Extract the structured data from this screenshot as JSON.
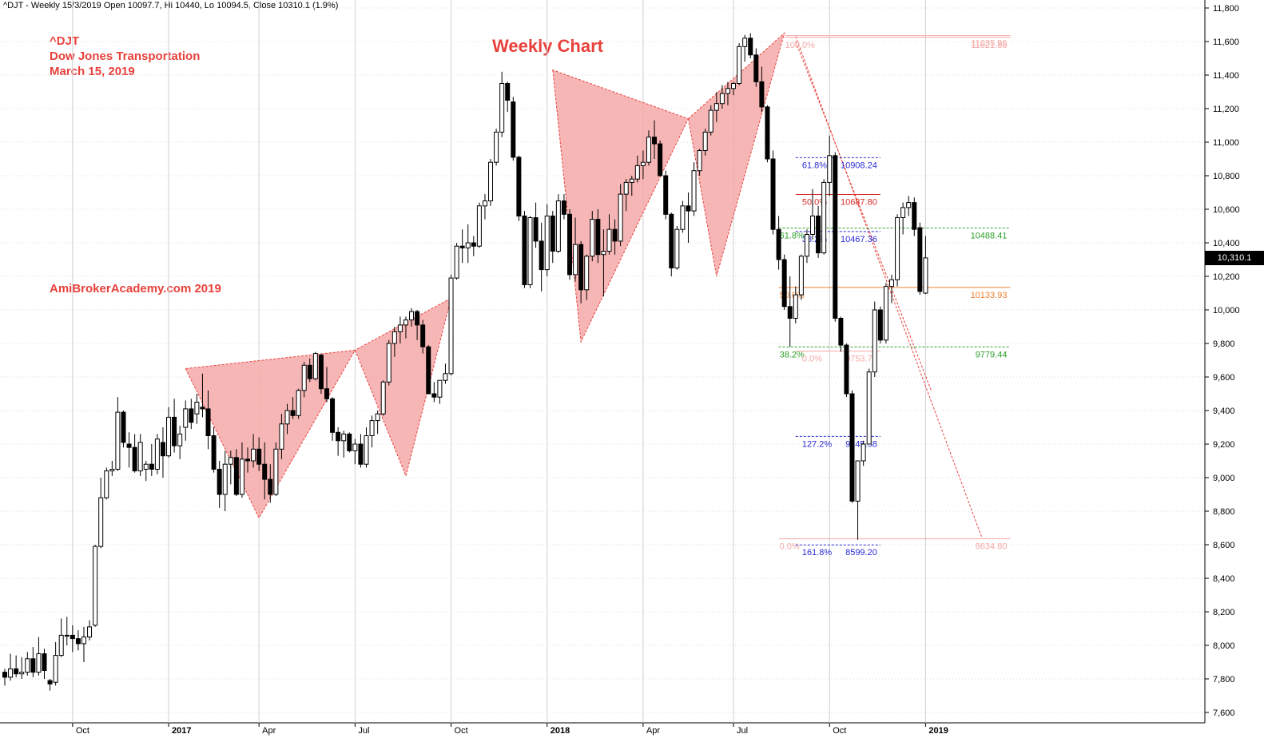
{
  "header": {
    "text": "^DJT - Weekly 15/3/2019 Open 10097.7, Hi 10440, Lo 10094.5, Close 10310.1 (1.9%)"
  },
  "annotations": {
    "symbol": "^DJT",
    "name": "Dow Jones Transportation",
    "date": "March 15, 2019",
    "title": "Weekly Chart",
    "watermark": "AmiBrokerAcademy.com  2019"
  },
  "last_price_label": "10,310.1",
  "colors": {
    "up_fill": "#ffffff",
    "down_fill": "#000000",
    "pattern_fill": "#f4a9a8",
    "pattern_stroke": "#e8413c",
    "annotation": "#e8413c",
    "grid": "#cccccc"
  },
  "chart_data": {
    "type": "candlestick",
    "title": "Weekly Chart",
    "ylim": [
      7550,
      11850
    ],
    "y_ticks": [
      7600,
      7800,
      8000,
      8200,
      8400,
      8600,
      8800,
      9000,
      9200,
      9400,
      9600,
      9800,
      10000,
      10200,
      10400,
      10600,
      10800,
      11000,
      11200,
      11400,
      11600,
      11800
    ],
    "y_tick_labels": [
      "7,600",
      "7,800",
      "8,000",
      "8,200",
      "8,400",
      "8,600",
      "8,800",
      "9,000",
      "9,200",
      "9,400",
      "9,600",
      "9,800",
      "10,000",
      "10,200",
      "10,400",
      "10,600",
      "10,800",
      "11,000",
      "11,200",
      "11,400",
      "11,600",
      "11,800"
    ],
    "x_labels": [
      {
        "label": "Oct",
        "bar": 12,
        "bold": false
      },
      {
        "label": "2017",
        "bar": 29,
        "bold": true
      },
      {
        "label": "Apr",
        "bar": 45,
        "bold": false
      },
      {
        "label": "Jul",
        "bar": 62,
        "bold": false
      },
      {
        "label": "Oct",
        "bar": 79,
        "bold": false
      },
      {
        "label": "2018",
        "bar": 96,
        "bold": true
      },
      {
        "label": "Apr",
        "bar": 113,
        "bold": false
      },
      {
        "label": "Jul",
        "bar": 129,
        "bold": false
      },
      {
        "label": "Oct",
        "bar": 146,
        "bold": false
      },
      {
        "label": "2019",
        "bar": 163,
        "bold": true
      }
    ],
    "candles": [
      [
        7840,
        7860,
        7760,
        7810
      ],
      [
        7810,
        7950,
        7790,
        7860
      ],
      [
        7860,
        7940,
        7810,
        7830
      ],
      [
        7830,
        7930,
        7800,
        7840
      ],
      [
        7840,
        7960,
        7820,
        7920
      ],
      [
        7920,
        7990,
        7810,
        7840
      ],
      [
        7840,
        8050,
        7820,
        7950
      ],
      [
        7950,
        7980,
        7800,
        7850
      ],
      [
        7790,
        7800,
        7730,
        7770
      ],
      [
        7780,
        8020,
        7760,
        7940
      ],
      [
        7940,
        8160,
        7930,
        8060
      ],
      [
        8060,
        8170,
        8000,
        8060
      ],
      [
        8060,
        8120,
        7960,
        8040
      ],
      [
        8040,
        8090,
        7970,
        8010
      ],
      [
        8010,
        8110,
        7900,
        8050
      ],
      [
        8050,
        8150,
        8030,
        8110
      ],
      [
        8120,
        8600,
        8110,
        8590
      ],
      [
        8590,
        9000,
        8580,
        8880
      ],
      [
        8880,
        9060,
        8870,
        9040
      ],
      [
        9040,
        9100,
        9010,
        9050
      ],
      [
        9050,
        9480,
        9040,
        9390
      ],
      [
        9390,
        9400,
        9180,
        9210
      ],
      [
        9200,
        9270,
        9060,
        9180
      ],
      [
        9180,
        9260,
        9030,
        9040
      ],
      [
        9040,
        9260,
        9010,
        9210
      ],
      [
        9050,
        9100,
        8980,
        9080
      ],
      [
        9080,
        9200,
        9010,
        9050
      ],
      [
        9050,
        9260,
        9020,
        9230
      ],
      [
        9210,
        9300,
        9000,
        9130
      ],
      [
        9130,
        9420,
        9120,
        9360
      ],
      [
        9360,
        9470,
        9150,
        9190
      ],
      [
        9190,
        9310,
        9110,
        9260
      ],
      [
        9300,
        9460,
        9220,
        9410
      ],
      [
        9410,
        9470,
        9290,
        9330
      ],
      [
        9380,
        9500,
        9320,
        9450
      ],
      [
        9420,
        9620,
        9360,
        9410
      ],
      [
        9410,
        9520,
        9170,
        9250
      ],
      [
        9250,
        9300,
        9030,
        9050
      ],
      [
        9050,
        9100,
        8820,
        8900
      ],
      [
        8900,
        9160,
        8800,
        9080
      ],
      [
        9080,
        9160,
        8960,
        9120
      ],
      [
        9120,
        9170,
        8890,
        8900
      ],
      [
        8900,
        9210,
        8880,
        9110
      ],
      [
        9110,
        9180,
        9030,
        9100
      ],
      [
        9100,
        9260,
        9060,
        9170
      ],
      [
        9170,
        9240,
        9040,
        9080
      ],
      [
        9080,
        9210,
        8870,
        8990
      ],
      [
        8990,
        9080,
        8850,
        8900
      ],
      [
        8900,
        9210,
        8890,
        9170
      ],
      [
        9170,
        9380,
        9110,
        9320
      ],
      [
        9320,
        9440,
        9260,
        9400
      ],
      [
        9400,
        9480,
        9350,
        9370
      ],
      [
        9370,
        9530,
        9350,
        9520
      ],
      [
        9520,
        9690,
        9480,
        9670
      ],
      [
        9670,
        9710,
        9570,
        9590
      ],
      [
        9590,
        9750,
        9580,
        9740
      ],
      [
        9730,
        9740,
        9500,
        9530
      ],
      [
        9530,
        9660,
        9450,
        9470
      ],
      [
        9470,
        9480,
        9220,
        9270
      ],
      [
        9270,
        9300,
        9130,
        9220
      ],
      [
        9220,
        9280,
        9120,
        9260
      ],
      [
        9260,
        9270,
        9150,
        9160
      ],
      [
        9160,
        9230,
        9080,
        9200
      ],
      [
        9200,
        9260,
        9060,
        9080
      ],
      [
        9080,
        9300,
        9060,
        9250
      ],
      [
        9250,
        9370,
        9180,
        9340
      ],
      [
        9340,
        9400,
        9260,
        9380
      ],
      [
        9380,
        9580,
        9370,
        9570
      ],
      [
        9570,
        9820,
        9550,
        9800
      ],
      [
        9800,
        9900,
        9720,
        9870
      ],
      [
        9870,
        9960,
        9800,
        9910
      ],
      [
        9910,
        9960,
        9830,
        9940
      ],
      [
        9940,
        10010,
        9900,
        9990
      ],
      [
        9990,
        10000,
        9820,
        9910
      ],
      [
        9910,
        9940,
        9740,
        9780
      ],
      [
        9780,
        9790,
        9500,
        9500
      ],
      [
        9500,
        9570,
        9450,
        9480
      ],
      [
        9480,
        9570,
        9440,
        9580
      ],
      [
        9580,
        9680,
        9560,
        9620
      ],
      [
        9620,
        10210,
        9610,
        10190
      ],
      [
        10190,
        10400,
        10180,
        10380
      ],
      [
        10380,
        10480,
        10280,
        10370
      ],
      [
        10370,
        10510,
        10280,
        10400
      ],
      [
        10400,
        10440,
        10320,
        10380
      ],
      [
        10380,
        10640,
        10370,
        10620
      ],
      [
        10620,
        10690,
        10540,
        10650
      ],
      [
        10650,
        10900,
        10620,
        10880
      ],
      [
        10880,
        11080,
        10860,
        11060
      ],
      [
        11060,
        11420,
        11030,
        11350
      ],
      [
        11350,
        11360,
        11180,
        11250
      ],
      [
        11240,
        11270,
        10890,
        10910
      ],
      [
        10910,
        10920,
        10530,
        10560
      ],
      [
        10560,
        10590,
        10130,
        10150
      ],
      [
        10150,
        10560,
        10130,
        10550
      ],
      [
        10550,
        10640,
        10370,
        10410
      ],
      [
        10410,
        10520,
        10110,
        10240
      ],
      [
        10240,
        10630,
        10200,
        10560
      ],
      [
        10560,
        10590,
        10280,
        10350
      ],
      [
        10350,
        10690,
        10340,
        10650
      ],
      [
        10650,
        10690,
        10540,
        10570
      ],
      [
        10570,
        10600,
        10180,
        10210
      ],
      [
        10210,
        10550,
        10170,
        10390
      ],
      [
        10390,
        10410,
        10040,
        10120
      ],
      [
        10120,
        10330,
        10060,
        10320
      ],
      [
        10320,
        10590,
        10290,
        10540
      ],
      [
        10540,
        10600,
        10280,
        10330
      ],
      [
        10330,
        10480,
        10080,
        10350
      ],
      [
        10350,
        10570,
        10330,
        10480
      ],
      [
        10480,
        10540,
        10330,
        10410
      ],
      [
        10410,
        10750,
        10380,
        10690
      ],
      [
        10690,
        10780,
        10590,
        10760
      ],
      [
        10760,
        10800,
        10680,
        10780
      ],
      [
        10780,
        10920,
        10760,
        10860
      ],
      [
        10860,
        10950,
        10780,
        10880
      ],
      [
        10880,
        11070,
        10860,
        11030
      ],
      [
        11030,
        11130,
        10900,
        10990
      ],
      [
        10990,
        11010,
        10800,
        10800
      ],
      [
        10800,
        10830,
        10540,
        10570
      ],
      [
        10570,
        10580,
        10200,
        10250
      ],
      [
        10250,
        10500,
        10240,
        10480
      ],
      [
        10480,
        10650,
        10460,
        10620
      ],
      [
        10620,
        10700,
        10400,
        10590
      ],
      [
        10590,
        10880,
        10560,
        10830
      ],
      [
        10830,
        10960,
        10800,
        10950
      ],
      [
        10950,
        11080,
        10920,
        11060
      ],
      [
        11060,
        11220,
        11040,
        11190
      ],
      [
        11190,
        11300,
        11120,
        11230
      ],
      [
        11230,
        11340,
        11200,
        11290
      ],
      [
        11290,
        11360,
        11220,
        11320
      ],
      [
        11320,
        11360,
        11280,
        11350
      ],
      [
        11350,
        11590,
        11340,
        11570
      ],
      [
        11570,
        11640,
        11480,
        11620
      ],
      [
        11620,
        11650,
        11500,
        11520
      ],
      [
        11520,
        11560,
        11330,
        11360
      ],
      [
        11360,
        11450,
        11180,
        11210
      ],
      [
        11210,
        11220,
        10880,
        10900
      ],
      [
        10900,
        10950,
        10450,
        10480
      ],
      [
        10480,
        10560,
        10240,
        10300
      ],
      [
        10300,
        10330,
        10000,
        10020
      ],
      [
        10020,
        10200,
        9780,
        9950
      ],
      [
        9950,
        10140,
        9920,
        10090
      ],
      [
        10090,
        10330,
        10060,
        10320
      ],
      [
        10320,
        10480,
        10280,
        10450
      ],
      [
        10450,
        10720,
        10420,
        10560
      ],
      [
        10560,
        10620,
        10310,
        10340
      ],
      [
        10340,
        10780,
        10330,
        10760
      ],
      [
        10760,
        11040,
        10680,
        10920
      ],
      [
        10920,
        10940,
        9930,
        9950
      ],
      [
        9950,
        9960,
        9750,
        9790
      ],
      [
        9790,
        9800,
        9480,
        9500
      ],
      [
        9500,
        9520,
        8850,
        8860
      ],
      [
        8860,
        9100,
        8630,
        9100
      ],
      [
        9100,
        9220,
        9070,
        9200
      ],
      [
        9200,
        9650,
        9200,
        9630
      ],
      [
        9630,
        10050,
        9600,
        10000
      ],
      [
        10000,
        10020,
        9800,
        9820
      ],
      [
        9820,
        10160,
        9800,
        10140
      ],
      [
        10140,
        10210,
        10040,
        10180
      ],
      [
        10180,
        10570,
        10140,
        10550
      ],
      [
        10550,
        10640,
        10450,
        10610
      ],
      [
        10610,
        10680,
        10560,
        10640
      ],
      [
        10640,
        10670,
        10440,
        10480
      ],
      [
        10490,
        10520,
        10090,
        10110
      ],
      [
        10100,
        10440,
        10094,
        10310
      ]
    ],
    "patterns": [
      {
        "name": "pattern-2017",
        "points": [
          [
            32,
            9650
          ],
          [
            45,
            8760
          ],
          [
            62,
            9760
          ],
          [
            79,
            10070
          ]
        ],
        "triangles": [
          [
            [
              32,
              9650
            ],
            [
              45,
              8760
            ],
            [
              62,
              9760
            ]
          ],
          [
            [
              62,
              9760
            ],
            [
              71,
              9010
            ],
            [
              79,
              10070
            ]
          ]
        ]
      },
      {
        "name": "pattern-2018",
        "points": [
          [
            97,
            11430
          ],
          [
            102,
            9810
          ],
          [
            121,
            11140
          ],
          [
            138,
            11650
          ]
        ],
        "triangles": [
          [
            [
              97,
              11430
            ],
            [
              102,
              9810
            ],
            [
              121,
              11140
            ]
          ],
          [
            [
              121,
              11140
            ],
            [
              126,
              10200
            ],
            [
              138,
              11650
            ]
          ]
        ]
      }
    ],
    "fib_levels": [
      {
        "left_label": "100.0%",
        "right_label": "11621.88",
        "value": 11625,
        "color": "#f4a9a8",
        "style": "solid",
        "x1": 138,
        "x2": 178,
        "left_bar": 138
      },
      {
        "left_label": "0.0%",
        "right_label": "11635.96",
        "value": 11635,
        "color": "#f4a9a8",
        "style": "solid",
        "x1": 138,
        "x2": 178,
        "left_bar": 138,
        "right_text_bar": 178,
        "hide_left": true
      },
      {
        "left_label": "61.8%",
        "right_label": "10908.24",
        "value": 10908,
        "color": "#2b2bd6",
        "style": "dashed",
        "x1": 140,
        "x2": 155,
        "left_bar": 141
      },
      {
        "left_label": "50.0%",
        "right_label": "10687.80",
        "value": 10688,
        "color": "#d62b2b",
        "style": "solid",
        "x1": 140,
        "x2": 155,
        "left_bar": 141
      },
      {
        "left_label": "61.8%",
        "right_label": "10488.41",
        "value": 10488,
        "color": "#2ba02b",
        "style": "dashed",
        "x1": 137,
        "x2": 178,
        "left_bar": 137
      },
      {
        "left_label": "38.2%",
        "right_label": "10467.36",
        "value": 10467,
        "color": "#2b2bd6",
        "style": "dashed",
        "x1": 140,
        "x2": 155,
        "left_bar": 141
      },
      {
        "left_label": "50.0%",
        "right_label": "10133.93",
        "value": 10134,
        "color": "#f08030",
        "style": "solid",
        "x1": 137,
        "x2": 178,
        "left_bar": 137
      },
      {
        "left_label": "38.2%",
        "right_label": "9779.44",
        "value": 9779,
        "color": "#2ba02b",
        "style": "dashed",
        "x1": 137,
        "x2": 178,
        "left_bar": 137
      },
      {
        "left_label": "0.0%",
        "right_label": "9753.72",
        "value": 9754,
        "color": "#f4a9a8",
        "style": "solid",
        "x1": 140,
        "x2": 155,
        "left_bar": 141
      },
      {
        "left_label": "127.2%",
        "right_label": "9245.58",
        "value": 9246,
        "color": "#2b2bd6",
        "style": "dashed",
        "x1": 140,
        "x2": 155,
        "left_bar": 141
      },
      {
        "left_label": "0.0%",
        "right_label": "8634.80",
        "value": 8635,
        "color": "#f4a9a8",
        "style": "solid",
        "x1": 137,
        "x2": 178,
        "left_bar": 137
      },
      {
        "left_label": "161.8%",
        "right_label": "8599.20",
        "value": 8599,
        "color": "#2b2bd6",
        "style": "dashed",
        "x1": 140,
        "x2": 155,
        "left_bar": 141
      }
    ],
    "trend_lines": [
      {
        "from": [
          140,
          11630
        ],
        "to": [
          173,
          8640
        ],
        "color": "#e8413c",
        "style": "dashed"
      },
      {
        "from": [
          140,
          11600
        ],
        "to": [
          164,
          9520
        ],
        "color": "#e8413c",
        "style": "dashed"
      }
    ],
    "last_close": 10310.1
  }
}
